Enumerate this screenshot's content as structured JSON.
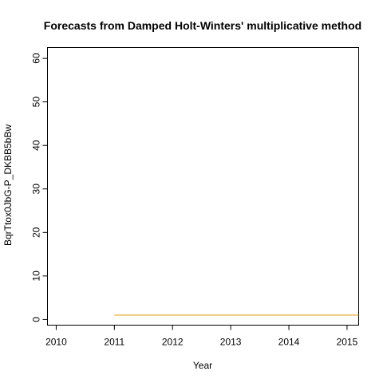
{
  "chart_data": {
    "type": "line",
    "title": "Forecasts from Damped Holt-Winters' multiplicative method",
    "xlabel": "Year",
    "ylabel": "BqrTtox0JbG-P_DKBB5bBw",
    "xlim": [
      2009.85,
      2015.2
    ],
    "ylim": [
      -1.3,
      62.5
    ],
    "xticks": [
      2010,
      2011,
      2012,
      2013,
      2014,
      2015
    ],
    "yticks": [
      0,
      10,
      20,
      30,
      40,
      50,
      60
    ],
    "grid": false,
    "series": [
      {
        "color": "#e6a01e",
        "x": [
          2011.0,
          2015.2
        ],
        "y": [
          1.0,
          1.0
        ]
      }
    ]
  }
}
